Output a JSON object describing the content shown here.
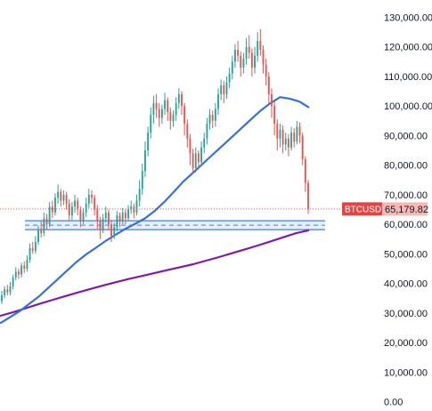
{
  "chart_data": {
    "type": "candlestick",
    "symbol": "BTCUSDT",
    "last_price": 65179.82,
    "last_price_label": "65,179.82",
    "y_range": [
      0,
      133000
    ],
    "y_ticks": [
      {
        "value": 130000,
        "label": "130,000.00"
      },
      {
        "value": 120000,
        "label": "120,000.00"
      },
      {
        "value": 110000,
        "label": "110,000.00"
      },
      {
        "value": 100000,
        "label": "100,000.00"
      },
      {
        "value": 90000,
        "label": "90,000.00"
      },
      {
        "value": 80000,
        "label": "80,000.00"
      },
      {
        "value": 70000,
        "label": "70,000.00"
      },
      {
        "value": 60000,
        "label": "60,000.00"
      },
      {
        "value": 50000,
        "label": "50,000.00"
      },
      {
        "value": 40000,
        "label": "40,000.00"
      },
      {
        "value": 30000,
        "label": "30,000.00"
      },
      {
        "value": 20000,
        "label": "20,000.00"
      },
      {
        "value": 10000,
        "label": "10,000.00"
      },
      {
        "value": 0,
        "label": "0.00"
      }
    ],
    "support_zone": {
      "low": 58200,
      "high": 61200,
      "mid": 59700
    },
    "colors": {
      "up": "#26a69a",
      "down": "#ef5350",
      "ma_fast": "#3a6fd8",
      "ma_slow": "#7b1fa2",
      "zone_fill": "#dbe9ff",
      "zone_edge": "#4a7fd8",
      "price_line": "#ef5350",
      "tag_left": "#e04646",
      "tag_right": "#f8b9b6"
    },
    "ma_fast": [
      26500,
      28500,
      30500,
      33000,
      35500,
      38500,
      41500,
      44500,
      47500,
      50000,
      52200,
      54500,
      56500,
      58500,
      60200,
      62000,
      64500,
      67500,
      71000,
      74500,
      77500,
      80500,
      83500,
      86500,
      89500,
      92500,
      95500,
      98500,
      101000,
      103000,
      102500,
      101500,
      99500
    ],
    "ma_slow": [
      29000,
      30200,
      31600,
      33000,
      34300,
      35600,
      36900,
      38100,
      39300,
      40400,
      41500,
      42500,
      43500,
      44500,
      45500,
      46500,
      47700,
      48900,
      50200,
      51500,
      52800,
      54200,
      55600,
      57000,
      58000
    ],
    "candles": [
      [
        34000,
        36000,
        37500,
        33000
      ],
      [
        36000,
        38000,
        39000,
        35000
      ],
      [
        38000,
        37000,
        39500,
        36000
      ],
      [
        37000,
        39000,
        40500,
        36000
      ],
      [
        39000,
        42000,
        43000,
        38000
      ],
      [
        42000,
        44000,
        45500,
        41000
      ],
      [
        44000,
        43000,
        45000,
        41500
      ],
      [
        43000,
        46000,
        47000,
        42000
      ],
      [
        46000,
        45000,
        47500,
        43500
      ],
      [
        45000,
        48000,
        49500,
        44000
      ],
      [
        48000,
        52000,
        53500,
        47000
      ],
      [
        52000,
        51000,
        54000,
        50000
      ],
      [
        51000,
        54000,
        56000,
        50000
      ],
      [
        54000,
        58000,
        59500,
        53000
      ],
      [
        58000,
        57000,
        61000,
        55500
      ],
      [
        57000,
        62000,
        64000,
        56000
      ],
      [
        62000,
        60000,
        63500,
        58000
      ],
      [
        60000,
        66000,
        67500,
        59000
      ],
      [
        66000,
        64000,
        68000,
        62000
      ],
      [
        64000,
        69000,
        70500,
        63000
      ],
      [
        69000,
        71000,
        73500,
        67000
      ],
      [
        71000,
        68000,
        72000,
        66000
      ],
      [
        68000,
        70000,
        71500,
        66500
      ],
      [
        70000,
        67000,
        71000,
        65000
      ],
      [
        67000,
        63000,
        68500,
        61000
      ],
      [
        63000,
        66000,
        67500,
        61500
      ],
      [
        66000,
        68000,
        70000,
        64000
      ],
      [
        68000,
        65000,
        69000,
        63000
      ],
      [
        65000,
        61000,
        66000,
        59000
      ],
      [
        61000,
        64000,
        65500,
        60000
      ],
      [
        64000,
        67000,
        69000,
        62500
      ],
      [
        67000,
        70000,
        72000,
        65500
      ],
      [
        70000,
        69000,
        71500,
        67000
      ],
      [
        69000,
        65000,
        70000,
        63000
      ],
      [
        65000,
        61000,
        66500,
        58500
      ],
      [
        61000,
        58000,
        62500,
        55000
      ],
      [
        58000,
        62000,
        63500,
        57000
      ],
      [
        62000,
        64000,
        66000,
        60500
      ],
      [
        64000,
        60000,
        65000,
        58000
      ],
      [
        60000,
        56000,
        61500,
        54000
      ],
      [
        56000,
        59000,
        60500,
        55000
      ],
      [
        59000,
        63000,
        64500,
        57500
      ],
      [
        63000,
        61000,
        64000,
        59000
      ],
      [
        61000,
        64000,
        65500,
        60000
      ],
      [
        64000,
        62000,
        65000,
        60000
      ],
      [
        62000,
        65000,
        66500,
        61000
      ],
      [
        65000,
        66000,
        68000,
        63500
      ],
      [
        66000,
        64000,
        67000,
        62000
      ],
      [
        64000,
        68000,
        70000,
        63000
      ],
      [
        68000,
        72000,
        75000,
        66000
      ],
      [
        72000,
        78000,
        80500,
        70000
      ],
      [
        78000,
        85000,
        88000,
        76000
      ],
      [
        85000,
        91000,
        93000,
        83000
      ],
      [
        91000,
        97000,
        99500,
        89000
      ],
      [
        97000,
        101000,
        103500,
        94000
      ],
      [
        101000,
        99000,
        104000,
        96000
      ],
      [
        99000,
        96000,
        101000,
        93000
      ],
      [
        96000,
        99000,
        100500,
        94000
      ],
      [
        99000,
        102000,
        104500,
        97000
      ],
      [
        102000,
        98000,
        103000,
        95000
      ],
      [
        98000,
        95000,
        99500,
        92000
      ],
      [
        95000,
        97000,
        98500,
        93000
      ],
      [
        97000,
        101000,
        103000,
        95000
      ],
      [
        101000,
        104000,
        106000,
        99000
      ],
      [
        104000,
        100000,
        105000,
        97000
      ],
      [
        100000,
        94000,
        101000,
        90000
      ],
      [
        94000,
        89000,
        95500,
        86000
      ],
      [
        89000,
        84000,
        90500,
        80000
      ],
      [
        84000,
        79000,
        85500,
        77000
      ],
      [
        79000,
        84000,
        86000,
        77500
      ],
      [
        84000,
        81000,
        85000,
        78500
      ],
      [
        81000,
        86000,
        88000,
        79500
      ],
      [
        86000,
        89000,
        91000,
        84000
      ],
      [
        89000,
        94000,
        96000,
        87000
      ],
      [
        94000,
        97000,
        99000,
        92000
      ],
      [
        97000,
        95000,
        98500,
        92500
      ],
      [
        95000,
        99000,
        101000,
        93000
      ],
      [
        99000,
        104000,
        106000,
        97000
      ],
      [
        104000,
        107000,
        109000,
        102000
      ],
      [
        107000,
        104000,
        108500,
        101000
      ],
      [
        104000,
        108000,
        110000,
        102500
      ],
      [
        108000,
        111000,
        113000,
        106000
      ],
      [
        111000,
        115000,
        117000,
        109000
      ],
      [
        115000,
        119000,
        121000,
        113000
      ],
      [
        119000,
        117000,
        122000,
        115000
      ],
      [
        117000,
        113000,
        118500,
        110000
      ],
      [
        113000,
        116000,
        118000,
        111000
      ],
      [
        116000,
        120000,
        123000,
        114000
      ],
      [
        120000,
        118000,
        124000,
        116000
      ],
      [
        118000,
        113000,
        119500,
        110000
      ],
      [
        113000,
        117000,
        120000,
        111000
      ],
      [
        117000,
        122000,
        125000,
        115000
      ],
      [
        122000,
        119000,
        126000,
        117000
      ],
      [
        119000,
        114000,
        120500,
        111000
      ],
      [
        114000,
        110000,
        116000,
        107000
      ],
      [
        110000,
        104000,
        111500,
        101000
      ],
      [
        104000,
        100000,
        106000,
        96000
      ],
      [
        100000,
        94000,
        101500,
        90000
      ],
      [
        94000,
        89000,
        95500,
        85000
      ],
      [
        89000,
        92000,
        94000,
        86000
      ],
      [
        92000,
        87000,
        93500,
        84000
      ],
      [
        87000,
        89000,
        91000,
        85000
      ],
      [
        89000,
        86000,
        90500,
        83000
      ],
      [
        86000,
        91000,
        93000,
        85000
      ],
      [
        91000,
        88000,
        92500,
        86000
      ],
      [
        88000,
        93000,
        95000,
        87000
      ],
      [
        93000,
        90000,
        94500,
        87500
      ],
      [
        90000,
        82000,
        91000,
        80000
      ],
      [
        82000,
        74000,
        83000,
        71000
      ],
      [
        74000,
        65180,
        75000,
        63500
      ]
    ]
  }
}
